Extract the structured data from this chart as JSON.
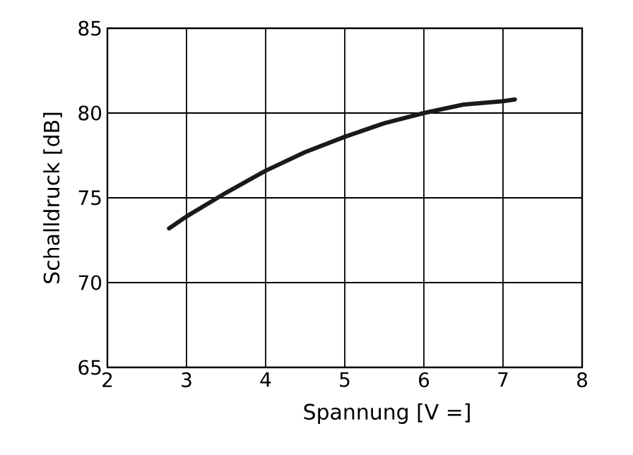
{
  "chart_data": {
    "type": "line",
    "xlabel": "Spannung [V =]",
    "ylabel": "Schalldruck [dB]",
    "x": [
      2.78,
      3,
      3.5,
      4,
      4.5,
      5,
      5.5,
      6,
      6.5,
      7,
      7.15
    ],
    "values": [
      73.2,
      73.9,
      75.3,
      76.6,
      77.7,
      78.6,
      79.4,
      80.0,
      80.5,
      80.7,
      80.8
    ],
    "color": "#1a1a1a",
    "xlim": [
      2,
      8
    ],
    "ylim": [
      65,
      85
    ],
    "xticks": [
      2,
      3,
      4,
      5,
      6,
      7,
      8
    ],
    "yticks": [
      65,
      70,
      75,
      80,
      85
    ],
    "grid": true
  }
}
